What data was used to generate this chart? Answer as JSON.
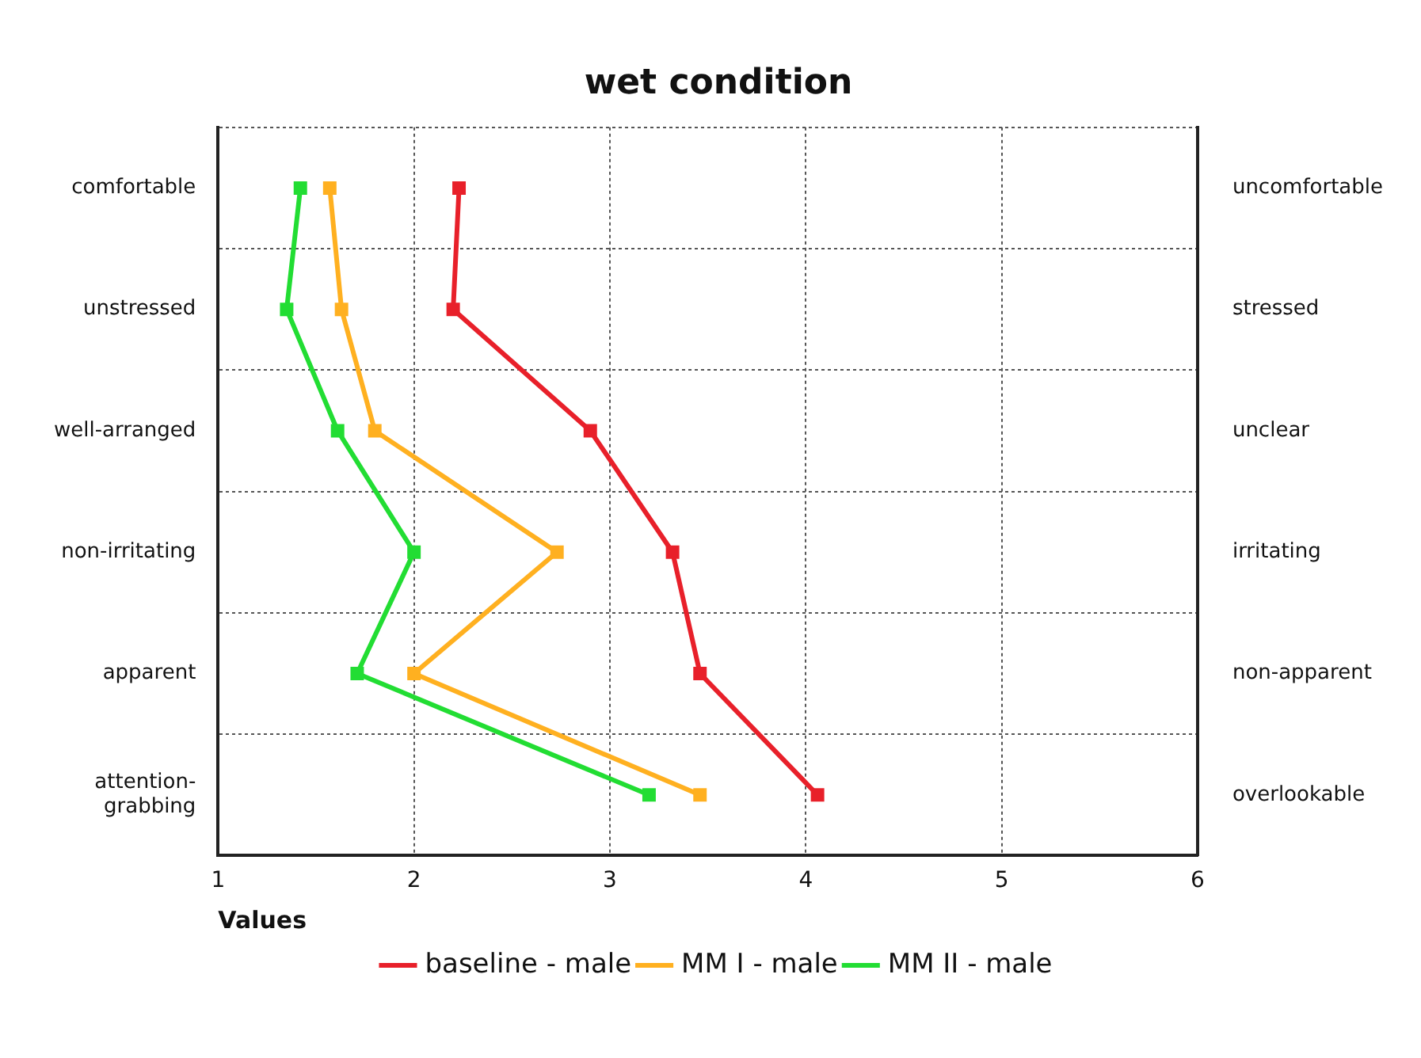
{
  "chart_data": {
    "type": "line",
    "orientation": "horizontal",
    "title": "wet condition",
    "xlabel": "Values",
    "categories": [
      "comfortable",
      "unstressed",
      "well-arranged",
      "non-irritating",
      "apparent",
      "attention-grabbing"
    ],
    "y2_categories": [
      "uncomfortable",
      "stressed",
      "unclear",
      "irritating",
      "non-apparent",
      "overlookable"
    ],
    "xlim": [
      1,
      6
    ],
    "xticks": [
      1,
      2,
      3,
      4,
      5,
      6
    ],
    "grid": true,
    "legend": "bottom",
    "marker": "square",
    "line_style": "solid",
    "series": [
      {
        "name": "baseline - male",
        "color": "#e8202a",
        "values": [
          2.23,
          2.2,
          2.9,
          3.32,
          3.46,
          4.06
        ]
      },
      {
        "name": "MM I - male",
        "color": "#ffb020",
        "values": [
          1.57,
          1.63,
          1.8,
          2.73,
          2.0,
          3.46
        ]
      },
      {
        "name": "MM II - male",
        "color": "#22dd33",
        "values": [
          1.42,
          1.35,
          1.61,
          2.0,
          1.71,
          3.2
        ]
      }
    ]
  }
}
